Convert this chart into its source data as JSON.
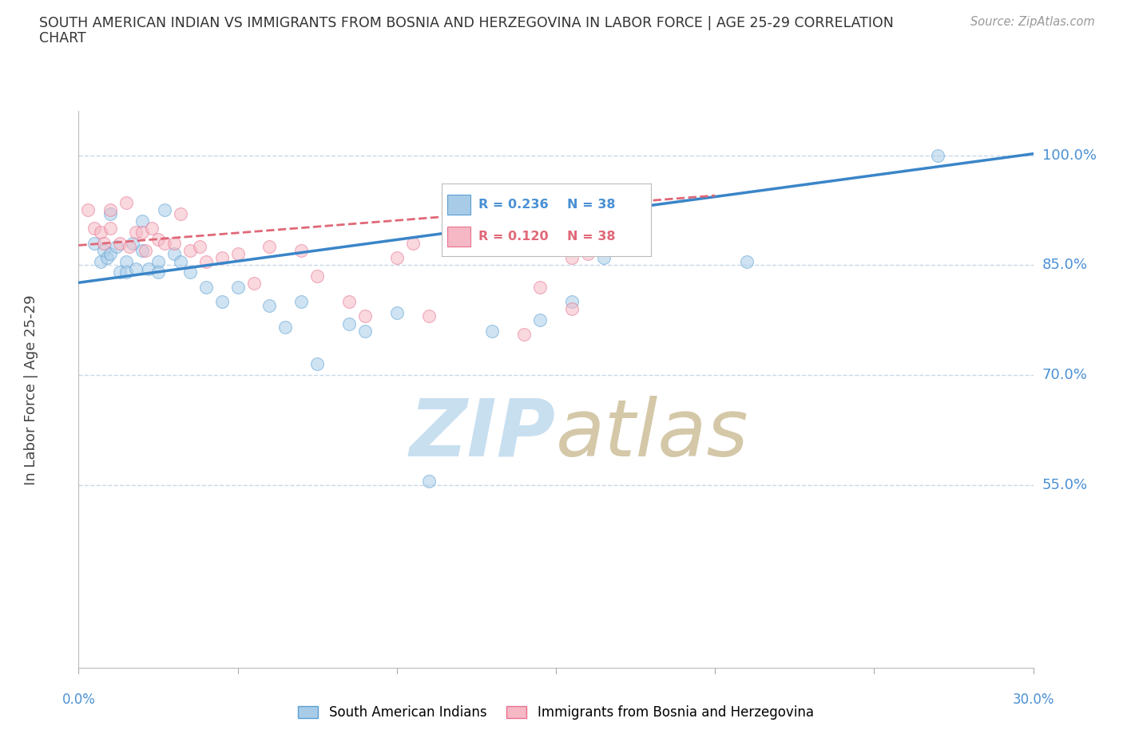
{
  "title_line1": "SOUTH AMERICAN INDIAN VS IMMIGRANTS FROM BOSNIA AND HERZEGOVINA IN LABOR FORCE | AGE 25-29 CORRELATION",
  "title_line2": "CHART",
  "source": "Source: ZipAtlas.com",
  "ylabel": "In Labor Force | Age 25-29",
  "ytick_labels": [
    "100.0%",
    "85.0%",
    "70.0%",
    "55.0%"
  ],
  "ytick_values": [
    1.0,
    0.85,
    0.7,
    0.55
  ],
  "xmin": 0.0,
  "xmax": 0.3,
  "ymin": 0.3,
  "ymax": 1.06,
  "legend_blue_r": "R = 0.236",
  "legend_blue_n": "N = 38",
  "legend_pink_r": "R = 0.120",
  "legend_pink_n": "N = 38",
  "blue_color": "#a8cce8",
  "pink_color": "#f5b8c4",
  "blue_edge_color": "#5a9fd4",
  "pink_edge_color": "#e87090",
  "blue_line_color": "#3a85c8",
  "pink_line_color": "#e06878",
  "axis_color": "#4a90d4",
  "watermark_zip_color": "#c8dff0",
  "watermark_atlas_color": "#d4c8a8",
  "blue_scatter_x": [
    0.005,
    0.007,
    0.008,
    0.009,
    0.01,
    0.01,
    0.012,
    0.013,
    0.015,
    0.015,
    0.017,
    0.018,
    0.02,
    0.02,
    0.022,
    0.025,
    0.025,
    0.027,
    0.03,
    0.032,
    0.035,
    0.04,
    0.045,
    0.05,
    0.06,
    0.065,
    0.07,
    0.075,
    0.085,
    0.09,
    0.1,
    0.11,
    0.13,
    0.145,
    0.155,
    0.165,
    0.21,
    0.27
  ],
  "blue_scatter_y": [
    0.88,
    0.855,
    0.87,
    0.86,
    0.92,
    0.865,
    0.875,
    0.84,
    0.855,
    0.84,
    0.88,
    0.845,
    0.91,
    0.87,
    0.845,
    0.855,
    0.84,
    0.925,
    0.865,
    0.855,
    0.84,
    0.82,
    0.8,
    0.82,
    0.795,
    0.765,
    0.8,
    0.715,
    0.77,
    0.76,
    0.785,
    0.555,
    0.76,
    0.775,
    0.8,
    0.86,
    0.855,
    1.0
  ],
  "pink_scatter_x": [
    0.003,
    0.005,
    0.007,
    0.008,
    0.01,
    0.01,
    0.013,
    0.015,
    0.016,
    0.018,
    0.02,
    0.021,
    0.023,
    0.025,
    0.027,
    0.03,
    0.032,
    0.035,
    0.038,
    0.04,
    0.045,
    0.05,
    0.055,
    0.06,
    0.07,
    0.075,
    0.085,
    0.09,
    0.1,
    0.105,
    0.11,
    0.12,
    0.13,
    0.14,
    0.145,
    0.155,
    0.155,
    0.16
  ],
  "pink_scatter_y": [
    0.925,
    0.9,
    0.895,
    0.88,
    0.925,
    0.9,
    0.88,
    0.935,
    0.875,
    0.895,
    0.895,
    0.87,
    0.9,
    0.885,
    0.88,
    0.88,
    0.92,
    0.87,
    0.875,
    0.855,
    0.86,
    0.865,
    0.825,
    0.875,
    0.87,
    0.835,
    0.8,
    0.78,
    0.86,
    0.88,
    0.78,
    0.88,
    0.89,
    0.755,
    0.82,
    0.79,
    0.86,
    0.865
  ],
  "blue_trendline_x": [
    0.0,
    0.3
  ],
  "blue_trendline_y": [
    0.826,
    1.002
  ],
  "pink_trendline_x": [
    0.0,
    0.2
  ],
  "pink_trendline_y": [
    0.877,
    0.945
  ],
  "background_color": "#ffffff",
  "grid_color": "#c8d8e8",
  "scatter_size": 130,
  "scatter_alpha": 0.55
}
